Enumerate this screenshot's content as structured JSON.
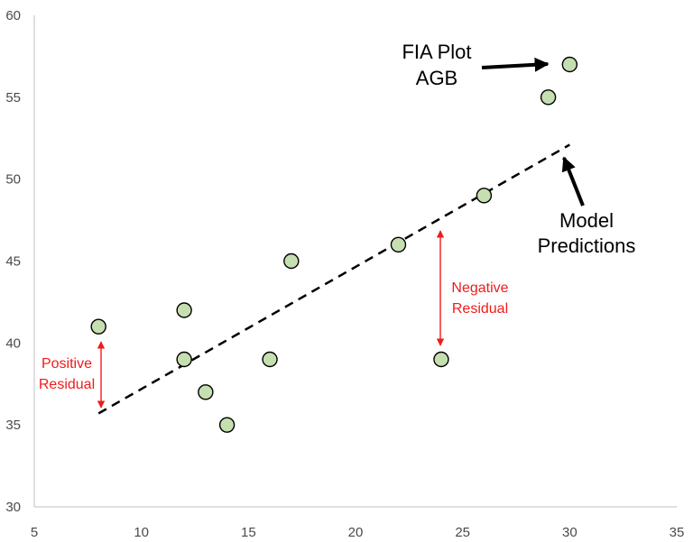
{
  "chart_data": {
    "type": "scatter",
    "title": "",
    "xlabel": "",
    "ylabel": "",
    "xlim": [
      5,
      35
    ],
    "ylim": [
      30,
      60
    ],
    "x_ticks": [
      5,
      10,
      15,
      20,
      25,
      30,
      35
    ],
    "y_ticks": [
      30,
      35,
      40,
      45,
      50,
      55,
      60
    ],
    "grid": false,
    "legend": "none",
    "series": [
      {
        "type": "scatter",
        "x": [
          8,
          12,
          12,
          13,
          14,
          16,
          17,
          22,
          24,
          26,
          29,
          30
        ],
        "y": [
          41,
          42,
          39,
          37,
          35,
          39,
          45,
          46,
          39,
          49,
          55,
          57
        ],
        "color": "#c6dfb0"
      },
      {
        "type": "line",
        "style": "dashed",
        "x": [
          8,
          30
        ],
        "y": [
          35.7,
          52.1
        ],
        "color": "#000000"
      }
    ],
    "annotations": {
      "fia": {
        "lines": [
          "FIA Plot",
          "AGB"
        ]
      },
      "model": {
        "lines": [
          "Model",
          "Predictions"
        ]
      },
      "negative": {
        "lines": [
          "Negative",
          "Residual"
        ]
      },
      "positive": {
        "lines": [
          "Positive",
          "Residual"
        ]
      }
    }
  },
  "colors": {
    "marker_fill": "#c6dfb0",
    "marker_stroke": "#000000",
    "residual_arrow": "#ee1c1c",
    "axis": "#bfbfbf"
  }
}
